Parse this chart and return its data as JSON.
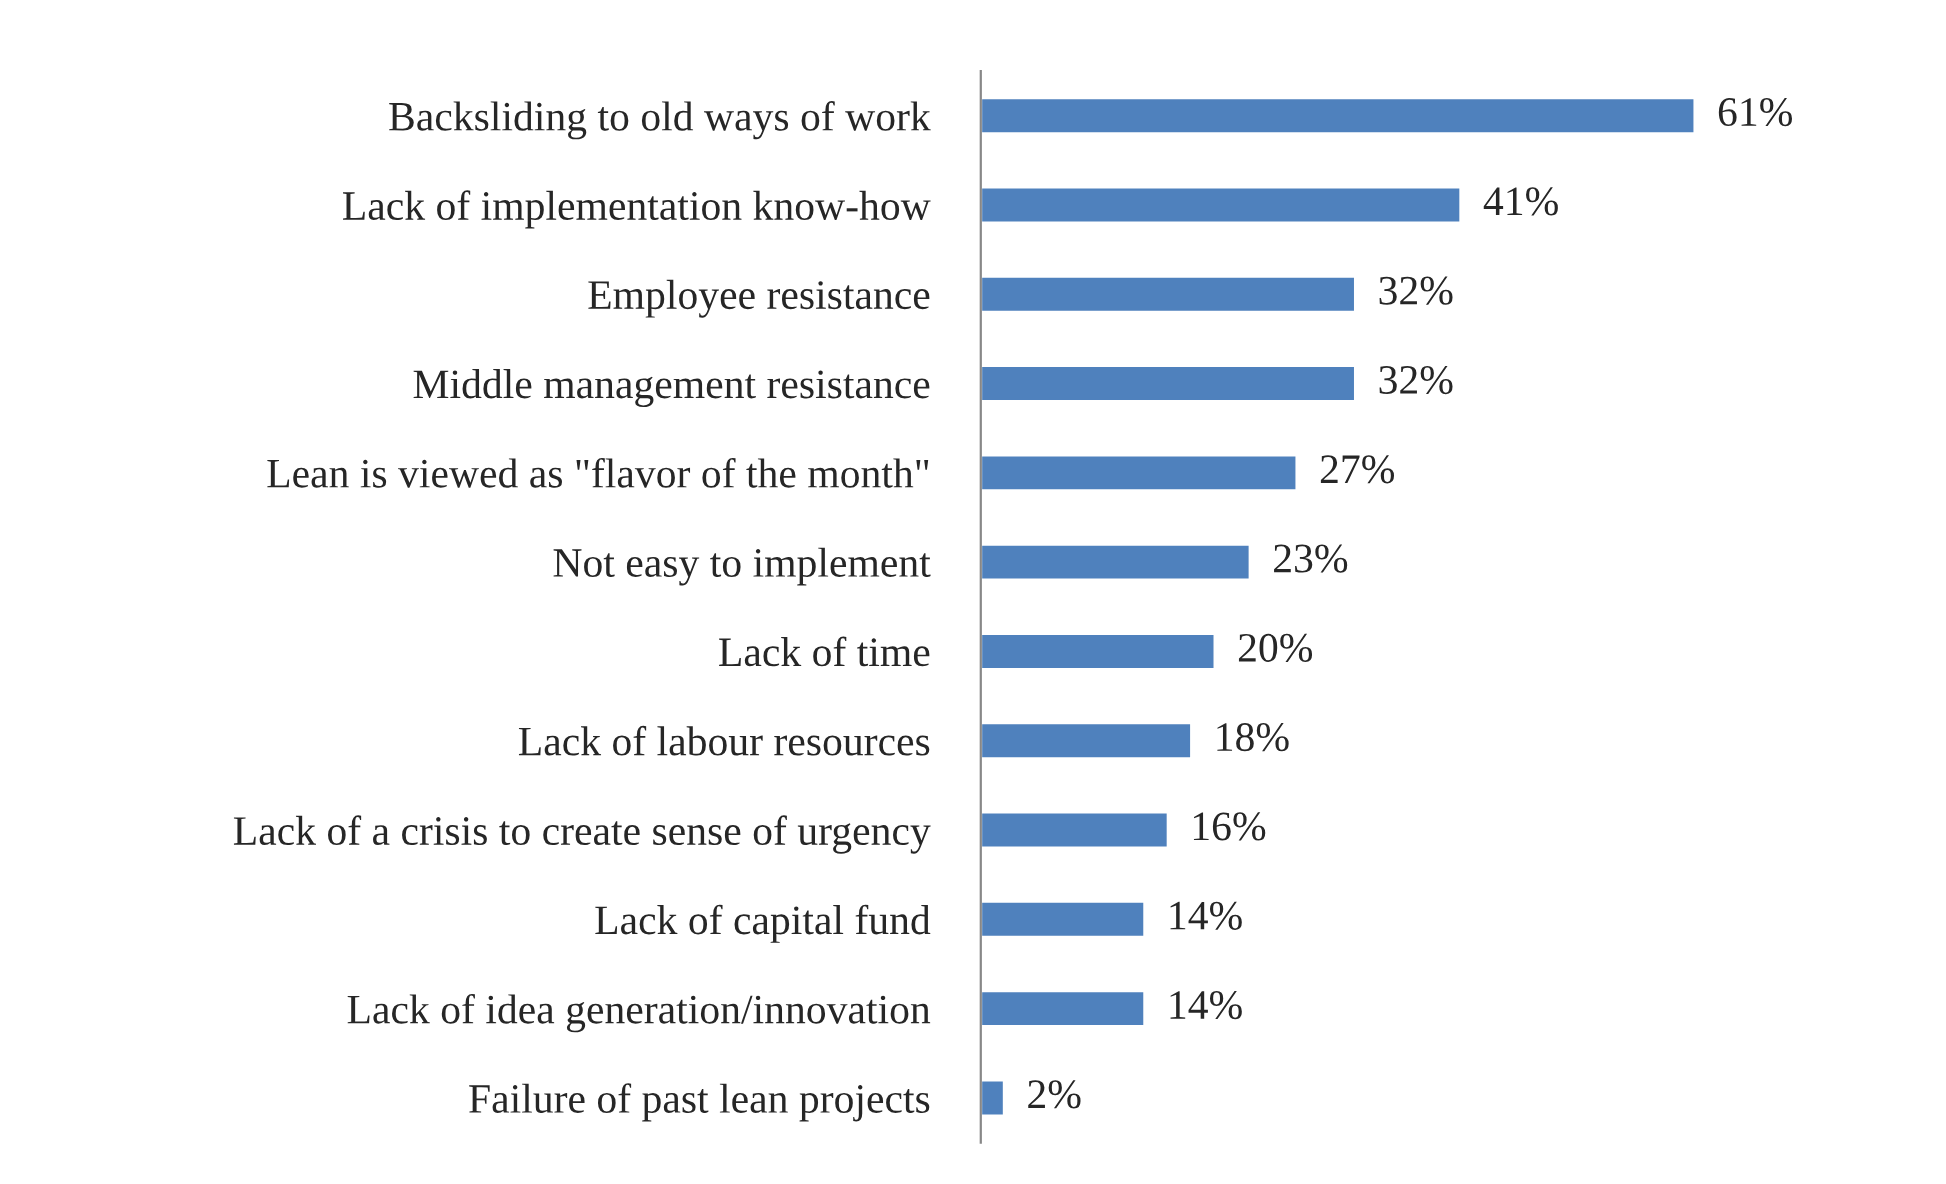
{
  "chart_data": {
    "type": "bar",
    "orientation": "horizontal",
    "tick_labels": "y",
    "grid": false,
    "legend": false,
    "categories": [
      "Backsliding to old ways of work",
      "Lack of implementation know-how",
      "Employee resistance",
      "Middle management resistance",
      "Lean is viewed as \"flavor of the month\"",
      "Not easy to implement",
      "Lack of time",
      "Lack of labour resources",
      "Lack of a crisis to create sense of urgency",
      "Lack of capital fund",
      "Lack of idea generation/innovation",
      "Failure of past lean projects"
    ],
    "values": [
      61,
      41,
      32,
      32,
      27,
      23,
      20,
      18,
      16,
      14,
      14,
      2
    ],
    "value_labels": [
      "61%",
      "41%",
      "32%",
      "32%",
      "27%",
      "23%",
      "20%",
      "18%",
      "16%",
      "14%",
      "14%",
      "2%"
    ],
    "color": "#4f81bd"
  }
}
